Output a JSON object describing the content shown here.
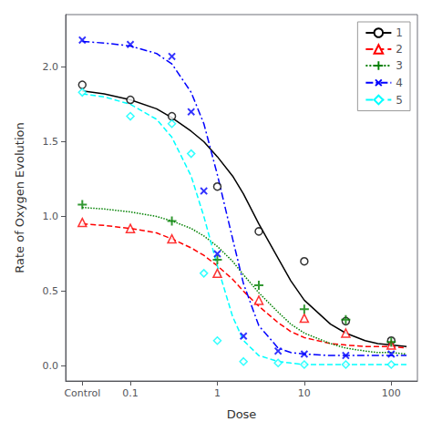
{
  "chart_data": {
    "type": "line",
    "xlabel": "Dose",
    "ylabel": "Rate of Oxygen Evolution",
    "log": "x",
    "grid": false,
    "legend": "upper right",
    "xlim": [
      0.018,
      200
    ],
    "xticks": [
      {
        "value": 0.028,
        "label": "Control"
      },
      0.1,
      1,
      10,
      100
    ],
    "ylim": [
      -0.1,
      2.35
    ],
    "yticks": [
      {
        "value": 0,
        "label": "0.0"
      },
      0.5,
      {
        "value": 1,
        "label": "1.0"
      },
      1.5,
      {
        "value": 2,
        "label": "2.0"
      }
    ],
    "series": [
      {
        "name": "1",
        "color": "black",
        "line_style": "solid",
        "marker": "circle",
        "x": [
          0.028,
          0.1,
          0.3,
          1.0,
          3.0,
          10.0,
          30.0,
          100.0
        ],
        "values": [
          1.88,
          1.78,
          1.67,
          1.2,
          0.9,
          0.7,
          0.3,
          0.17
        ],
        "fit": {
          "x": [
            0.028,
            0.05,
            0.1,
            0.2,
            0.3,
            0.5,
            0.7,
            1.0,
            1.5,
            2.0,
            3.0,
            5.0,
            7.0,
            10.0,
            20.0,
            30.0,
            50.0,
            70.0,
            100.0,
            150.0
          ],
          "values": [
            1.84,
            1.82,
            1.78,
            1.72,
            1.66,
            1.57,
            1.5,
            1.4,
            1.27,
            1.15,
            0.95,
            0.72,
            0.57,
            0.44,
            0.28,
            0.22,
            0.17,
            0.15,
            0.14,
            0.13
          ]
        }
      },
      {
        "name": "2",
        "color": "red",
        "line_style": "dashed",
        "marker": "triangle",
        "x": [
          0.028,
          0.1,
          0.3,
          1.0,
          3.0,
          10.0,
          30.0,
          100.0
        ],
        "values": [
          0.96,
          0.92,
          0.85,
          0.62,
          0.44,
          0.32,
          0.22,
          0.14
        ],
        "fit": {
          "x": [
            0.028,
            0.05,
            0.1,
            0.2,
            0.3,
            0.5,
            0.7,
            1.0,
            1.5,
            2.0,
            3.0,
            5.0,
            7.0,
            10.0,
            20.0,
            30.0,
            50.0,
            70.0,
            100.0,
            150.0
          ],
          "values": [
            0.95,
            0.94,
            0.92,
            0.89,
            0.85,
            0.79,
            0.74,
            0.67,
            0.58,
            0.5,
            0.4,
            0.29,
            0.23,
            0.19,
            0.15,
            0.14,
            0.13,
            0.13,
            0.13,
            0.12
          ]
        }
      },
      {
        "name": "3",
        "color": "green",
        "line_style": "dotted",
        "marker": "plus",
        "x": [
          0.028,
          0.3,
          1.0,
          3.0,
          10.0,
          30.0,
          100.0
        ],
        "values": [
          1.08,
          0.97,
          0.71,
          0.54,
          0.38,
          0.31,
          0.16
        ],
        "fit": {
          "x": [
            0.028,
            0.05,
            0.1,
            0.2,
            0.3,
            0.5,
            0.7,
            1.0,
            1.5,
            2.0,
            3.0,
            5.0,
            7.0,
            10.0,
            20.0,
            30.0,
            50.0,
            70.0,
            100.0,
            150.0
          ],
          "values": [
            1.06,
            1.05,
            1.03,
            1.0,
            0.97,
            0.92,
            0.87,
            0.8,
            0.7,
            0.61,
            0.49,
            0.36,
            0.28,
            0.22,
            0.15,
            0.12,
            0.1,
            0.09,
            0.09,
            0.08
          ]
        }
      },
      {
        "name": "4",
        "color": "blue",
        "line_style": "dashdot",
        "marker": "x",
        "x": [
          0.028,
          0.1,
          0.3,
          0.5,
          0.7,
          1.0,
          2.0,
          5.0,
          10.0,
          30.0,
          100.0
        ],
        "values": [
          2.18,
          2.15,
          2.07,
          1.7,
          1.17,
          0.75,
          0.2,
          0.1,
          0.08,
          0.07,
          0.08
        ],
        "fit": {
          "x": [
            0.028,
            0.05,
            0.1,
            0.2,
            0.3,
            0.5,
            0.7,
            1.0,
            1.5,
            2.0,
            3.0,
            5.0,
            7.0,
            10.0,
            20.0,
            30.0,
            50.0,
            70.0,
            100.0,
            150.0
          ],
          "values": [
            2.17,
            2.16,
            2.14,
            2.09,
            2.02,
            1.83,
            1.62,
            1.28,
            0.85,
            0.55,
            0.27,
            0.12,
            0.09,
            0.08,
            0.07,
            0.07,
            0.07,
            0.07,
            0.07,
            0.07
          ]
        }
      },
      {
        "name": "5",
        "color": "cyan",
        "line_style": "dashed",
        "marker": "diamond",
        "x": [
          0.028,
          0.1,
          0.3,
          0.5,
          0.7,
          1.0,
          2.0,
          5.0,
          10.0,
          30.0,
          100.0
        ],
        "values": [
          1.83,
          1.67,
          1.62,
          1.42,
          0.62,
          0.17,
          0.03,
          0.02,
          0.01,
          0.01,
          0.01
        ],
        "fit": {
          "x": [
            0.028,
            0.05,
            0.1,
            0.2,
            0.3,
            0.5,
            0.7,
            1.0,
            1.5,
            2.0,
            3.0,
            5.0,
            7.0,
            10.0,
            20.0,
            30.0,
            50.0,
            70.0,
            100.0,
            150.0
          ],
          "values": [
            1.82,
            1.8,
            1.75,
            1.65,
            1.53,
            1.27,
            1.0,
            0.67,
            0.33,
            0.17,
            0.07,
            0.03,
            0.02,
            0.01,
            0.01,
            0.01,
            0.01,
            0.01,
            0.01,
            0.01
          ]
        }
      }
    ]
  }
}
